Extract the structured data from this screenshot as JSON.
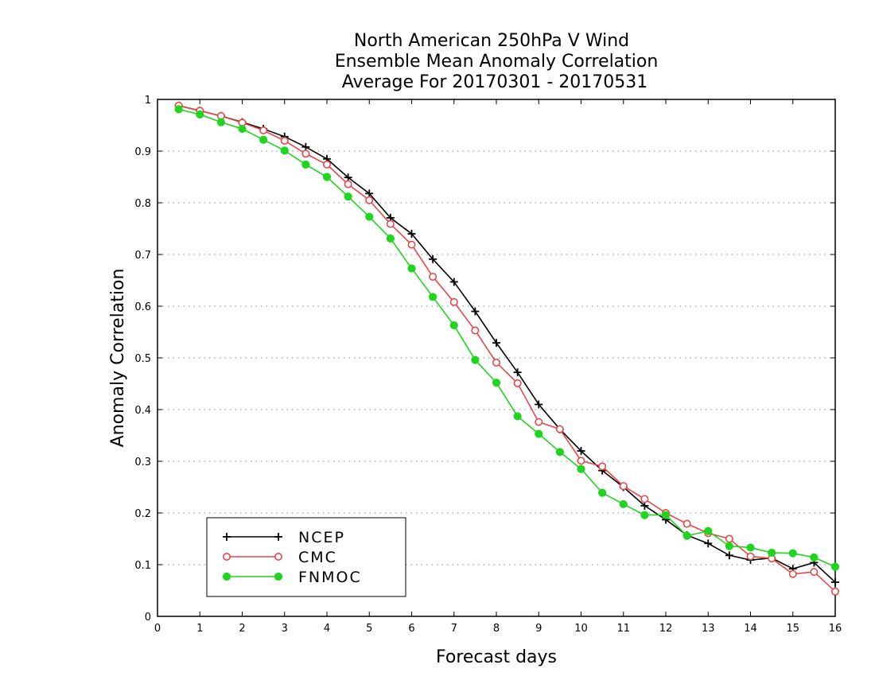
{
  "chart_data": {
    "type": "line",
    "title_lines": [
      "North American 250hPa V Wind",
      "Ensemble Mean Anomaly Correlation",
      "Average For 20170301 - 20170531"
    ],
    "xlabel": "Forecast days",
    "ylabel": "Anomaly Correlation",
    "xlim": [
      0,
      16
    ],
    "ylim": [
      0,
      1
    ],
    "xticks": [
      "0",
      "1",
      "2",
      "3",
      "4",
      "5",
      "6",
      "7",
      "8",
      "9",
      "10",
      "11",
      "12",
      "13",
      "14",
      "15",
      "16"
    ],
    "yticks": [
      "0",
      "0.1",
      "0.2",
      "0.3",
      "0.4",
      "0.5",
      "0.6",
      "0.7",
      "0.8",
      "0.9",
      "1"
    ],
    "grid": "horizontal dotted",
    "legend_position": "bottom-left",
    "x": [
      0.5,
      1,
      1.5,
      2,
      2.5,
      3,
      3.5,
      4,
      4.5,
      5,
      5.5,
      6,
      6.5,
      7,
      7.5,
      8,
      8.5,
      9,
      9.5,
      10,
      10.5,
      11,
      11.5,
      12,
      12.5,
      13,
      13.5,
      14,
      14.5,
      15,
      15.5,
      16
    ],
    "series": [
      {
        "name": "NCEP",
        "color": "#000000",
        "marker": "plus",
        "values": [
          0.988,
          0.978,
          0.968,
          0.956,
          0.943,
          0.928,
          0.908,
          0.885,
          0.849,
          0.818,
          0.771,
          0.74,
          0.691,
          0.647,
          0.59,
          0.529,
          0.472,
          0.41,
          0.362,
          0.32,
          0.282,
          0.25,
          0.214,
          0.187,
          0.157,
          0.141,
          0.118,
          0.109,
          0.113,
          0.092,
          0.104,
          0.066
        ]
      },
      {
        "name": "CMC",
        "color": "#e8474a",
        "marker": "open-circle",
        "values": [
          0.988,
          0.978,
          0.968,
          0.955,
          0.94,
          0.92,
          0.895,
          0.874,
          0.836,
          0.805,
          0.759,
          0.719,
          0.657,
          0.608,
          0.553,
          0.491,
          0.451,
          0.376,
          0.362,
          0.301,
          0.29,
          0.252,
          0.227,
          0.2,
          0.179,
          0.161,
          0.15,
          0.116,
          0.112,
          0.082,
          0.086,
          0.048
        ]
      },
      {
        "name": "FNMOC",
        "color": "#1fd51f",
        "marker": "filled-circle",
        "values": [
          0.981,
          0.971,
          0.956,
          0.943,
          0.922,
          0.901,
          0.874,
          0.85,
          0.812,
          0.773,
          0.731,
          0.673,
          0.618,
          0.563,
          0.496,
          0.452,
          0.387,
          0.353,
          0.318,
          0.285,
          0.239,
          0.217,
          0.196,
          0.196,
          0.156,
          0.165,
          0.136,
          0.133,
          0.123,
          0.122,
          0.114,
          0.096
        ]
      }
    ]
  }
}
